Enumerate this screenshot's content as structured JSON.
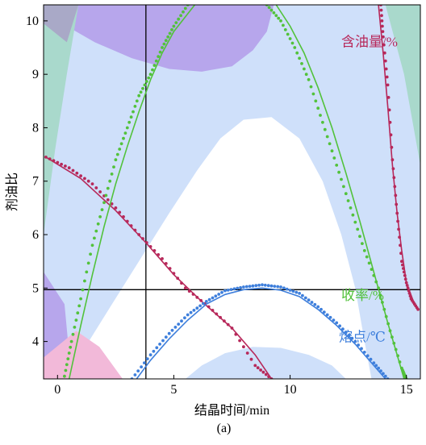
{
  "chart_data": {
    "type": "line",
    "title": "",
    "xlabel": "结晶时间/min",
    "ylabel": "剂油比",
    "caption": "(a)",
    "xlim": [
      -0.6,
      15.6
    ],
    "ylim": [
      3.3,
      10.3
    ],
    "xticks": [
      0,
      5,
      10,
      15
    ],
    "yticks": [
      4,
      5,
      6,
      7,
      8,
      9,
      10
    ],
    "grid": false,
    "reference_lines": {
      "vertical_x": 3.8,
      "horizontal_y": 4.97
    },
    "series": [
      {
        "name": "含油量/%",
        "color": "#b7285a",
        "points": [
          [
            -0.5,
            7.45
          ],
          [
            0.5,
            7.25
          ],
          [
            1.5,
            6.95
          ],
          [
            2.5,
            6.5
          ],
          [
            3.5,
            6.0
          ],
          [
            4.5,
            5.55
          ],
          [
            5.5,
            5.0
          ],
          [
            6.5,
            4.65
          ],
          [
            7.5,
            4.25
          ],
          [
            8.5,
            3.55
          ],
          [
            9.2,
            3.3
          ]
        ],
        "fit": [
          [
            -0.5,
            7.45
          ],
          [
            1.0,
            7.05
          ],
          [
            2.5,
            6.45
          ],
          [
            3.8,
            5.85
          ],
          [
            5.0,
            5.25
          ],
          [
            6.2,
            4.75
          ],
          [
            7.5,
            4.25
          ],
          [
            8.5,
            3.75
          ],
          [
            9.2,
            3.3
          ]
        ]
      },
      {
        "name": "含油量/%",
        "color": "#b7285a",
        "points": [
          [
            13.9,
            10.3
          ],
          [
            14.0,
            9.7
          ],
          [
            14.2,
            8.8
          ],
          [
            14.4,
            7.4
          ],
          [
            14.6,
            6.4
          ],
          [
            14.8,
            5.5
          ],
          [
            15.0,
            5.1
          ],
          [
            15.2,
            4.8
          ],
          [
            15.5,
            4.6
          ]
        ],
        "fit": [
          [
            13.8,
            10.3
          ],
          [
            14.0,
            9.4
          ],
          [
            14.2,
            8.4
          ],
          [
            14.4,
            7.3
          ],
          [
            14.6,
            6.4
          ],
          [
            14.8,
            5.7
          ],
          [
            15.0,
            5.1
          ],
          [
            15.3,
            4.75
          ],
          [
            15.5,
            4.6
          ]
        ]
      },
      {
        "name": "收率/%",
        "color": "#52c23b",
        "points": [
          [
            0.3,
            3.35
          ],
          [
            0.6,
            4.0
          ],
          [
            1.0,
            4.8
          ],
          [
            1.5,
            5.8
          ],
          [
            2.0,
            6.6
          ],
          [
            2.5,
            7.4
          ],
          [
            3.0,
            8.0
          ],
          [
            3.5,
            8.6
          ],
          [
            4.0,
            9.0
          ],
          [
            4.5,
            9.5
          ],
          [
            5.0,
            9.9
          ],
          [
            5.6,
            10.3
          ]
        ],
        "fit": [
          [
            0.5,
            3.3
          ],
          [
            1.0,
            4.3
          ],
          [
            1.5,
            5.25
          ],
          [
            2.0,
            6.15
          ],
          [
            2.5,
            6.95
          ],
          [
            3.0,
            7.65
          ],
          [
            3.5,
            8.3
          ],
          [
            4.0,
            8.9
          ],
          [
            4.5,
            9.4
          ],
          [
            5.0,
            9.8
          ],
          [
            5.9,
            10.3
          ]
        ]
      },
      {
        "name": "收率/%",
        "color": "#52c23b",
        "points": [
          [
            9.0,
            10.3
          ],
          [
            9.6,
            10.0
          ],
          [
            10.2,
            9.5
          ],
          [
            10.8,
            8.9
          ],
          [
            11.4,
            8.1
          ],
          [
            12.0,
            7.3
          ],
          [
            12.6,
            6.5
          ],
          [
            13.2,
            5.7
          ],
          [
            13.8,
            5.0
          ],
          [
            14.3,
            4.2
          ],
          [
            14.8,
            3.5
          ],
          [
            15.0,
            3.3
          ]
        ],
        "fit": [
          [
            9.4,
            10.3
          ],
          [
            10.0,
            9.9
          ],
          [
            10.6,
            9.4
          ],
          [
            11.2,
            8.75
          ],
          [
            11.8,
            8.0
          ],
          [
            12.4,
            7.15
          ],
          [
            13.0,
            6.25
          ],
          [
            13.6,
            5.3
          ],
          [
            14.2,
            4.35
          ],
          [
            14.7,
            3.6
          ],
          [
            14.9,
            3.3
          ]
        ]
      },
      {
        "name": "熔点/℃",
        "color": "#3e7fdc",
        "points": [
          [
            3.2,
            3.3
          ],
          [
            4.0,
            3.75
          ],
          [
            4.8,
            4.15
          ],
          [
            5.6,
            4.5
          ],
          [
            6.4,
            4.75
          ],
          [
            7.2,
            4.95
          ],
          [
            8.0,
            5.02
          ],
          [
            8.8,
            5.06
          ],
          [
            9.6,
            5.02
          ],
          [
            10.4,
            4.9
          ],
          [
            11.2,
            4.65
          ],
          [
            12.0,
            4.35
          ],
          [
            12.8,
            4.0
          ],
          [
            13.6,
            3.6
          ],
          [
            14.2,
            3.3
          ]
        ],
        "fit": [
          [
            3.4,
            3.3
          ],
          [
            4.0,
            3.65
          ],
          [
            4.8,
            4.05
          ],
          [
            5.6,
            4.4
          ],
          [
            6.4,
            4.7
          ],
          [
            7.2,
            4.88
          ],
          [
            8.0,
            4.97
          ],
          [
            8.8,
            5.0
          ],
          [
            9.6,
            4.96
          ],
          [
            10.4,
            4.84
          ],
          [
            11.2,
            4.6
          ],
          [
            12.0,
            4.3
          ],
          [
            12.8,
            3.95
          ],
          [
            13.6,
            3.55
          ],
          [
            14.1,
            3.3
          ]
        ]
      }
    ],
    "regions": [
      {
        "name": "blue-main",
        "color": "#cfe0fa",
        "poly": [
          [
            -0.6,
            10.3
          ],
          [
            15.6,
            10.3
          ],
          [
            15.6,
            3.3
          ],
          [
            13.5,
            3.3
          ],
          [
            13.2,
            4.0
          ],
          [
            12.8,
            5.0
          ],
          [
            12.2,
            6.0
          ],
          [
            11.4,
            7.0
          ],
          [
            10.4,
            7.8
          ],
          [
            9.2,
            8.2
          ],
          [
            8.0,
            8.15
          ],
          [
            7.0,
            7.8
          ],
          [
            6.0,
            7.2
          ],
          [
            4.8,
            6.4
          ],
          [
            3.5,
            5.5
          ],
          [
            2.2,
            4.6
          ],
          [
            1.2,
            3.9
          ],
          [
            0.5,
            3.3
          ],
          [
            -0.6,
            3.3
          ]
        ]
      },
      {
        "name": "blue-bottom",
        "color": "#cfe0fa",
        "poly": [
          [
            5.5,
            3.3
          ],
          [
            6.2,
            3.55
          ],
          [
            7.2,
            3.78
          ],
          [
            8.4,
            3.9
          ],
          [
            9.6,
            3.88
          ],
          [
            10.8,
            3.75
          ],
          [
            11.8,
            3.55
          ],
          [
            12.4,
            3.3
          ]
        ]
      },
      {
        "name": "purple-top",
        "color": "#b7a6ec",
        "poly": [
          [
            -0.6,
            10.3
          ],
          [
            9.3,
            10.3
          ],
          [
            9.0,
            9.8
          ],
          [
            8.4,
            9.45
          ],
          [
            7.5,
            9.15
          ],
          [
            6.2,
            9.05
          ],
          [
            4.8,
            9.1
          ],
          [
            3.2,
            9.3
          ],
          [
            1.6,
            9.6
          ],
          [
            0.4,
            9.9
          ],
          [
            -0.6,
            10.1
          ]
        ]
      },
      {
        "name": "teal-top-left",
        "color": "#a9d9cc",
        "poly": [
          [
            -0.6,
            10.3
          ],
          [
            0.9,
            10.3
          ],
          [
            0.4,
            9.0
          ],
          [
            -0.1,
            7.6
          ],
          [
            -0.6,
            6.0
          ]
        ]
      },
      {
        "name": "gray-top-left",
        "color": "#a9a9c7",
        "poly": [
          [
            -0.6,
            10.3
          ],
          [
            0.9,
            10.3
          ],
          [
            0.4,
            9.6
          ],
          [
            -0.6,
            9.95
          ]
        ]
      },
      {
        "name": "teal-top-right",
        "color": "#a9d9cc",
        "poly": [
          [
            14.1,
            10.3
          ],
          [
            15.6,
            10.3
          ],
          [
            15.6,
            7.3
          ],
          [
            14.9,
            9.0
          ]
        ]
      },
      {
        "name": "purple-bottom-left",
        "color": "#b7a6ec",
        "poly": [
          [
            -0.6,
            5.3
          ],
          [
            0.3,
            4.7
          ],
          [
            0.6,
            3.3
          ],
          [
            -0.6,
            3.3
          ]
        ]
      },
      {
        "name": "pink-bottom-left",
        "color": "#f2b9d9",
        "poly": [
          [
            -0.6,
            3.3
          ],
          [
            -0.6,
            3.7
          ],
          [
            0.8,
            4.2
          ],
          [
            1.8,
            3.9
          ],
          [
            2.8,
            3.3
          ]
        ]
      }
    ],
    "annotations": [
      {
        "text": "含油量/%",
        "color": "#b7285a",
        "x": 12.2,
        "y": 9.52
      },
      {
        "text": "收率/%",
        "color": "#52c23b",
        "x": 12.2,
        "y": 4.78
      },
      {
        "text": "熔点/℃",
        "color": "#3e7fdc",
        "x": 12.1,
        "y": 4.0
      }
    ]
  }
}
